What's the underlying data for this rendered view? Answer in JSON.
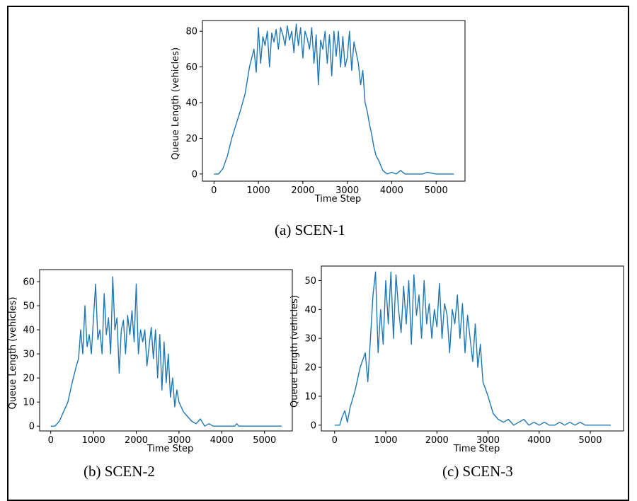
{
  "captions": [
    "(a) SCEN-1",
    "(b) SCEN-2",
    "(c) SCEN-3"
  ],
  "chart_data": [
    {
      "type": "line",
      "title": "",
      "xlabel": "Time Step",
      "ylabel": "Queue Length (vehicles)",
      "xlim": [
        -260,
        5650
      ],
      "ylim": [
        -4,
        86
      ],
      "xticks": [
        0,
        1000,
        2000,
        3000,
        4000,
        5000
      ],
      "yticks": [
        0,
        20,
        40,
        60,
        80
      ],
      "color": "#1f77b4",
      "x": [
        0,
        100,
        200,
        300,
        400,
        500,
        600,
        700,
        800,
        900,
        950,
        1000,
        1050,
        1100,
        1150,
        1200,
        1250,
        1300,
        1350,
        1400,
        1450,
        1500,
        1550,
        1600,
        1650,
        1700,
        1750,
        1800,
        1850,
        1900,
        1950,
        2000,
        2050,
        2100,
        2150,
        2200,
        2250,
        2300,
        2350,
        2400,
        2450,
        2500,
        2550,
        2600,
        2650,
        2700,
        2750,
        2800,
        2850,
        2900,
        2950,
        3000,
        3050,
        3100,
        3150,
        3200,
        3250,
        3300,
        3350,
        3400,
        3450,
        3500,
        3550,
        3600,
        3650,
        3700,
        3750,
        3800,
        3850,
        3900,
        4000,
        4100,
        4200,
        4300,
        4400,
        4500,
        4600,
        4700,
        4800,
        5000,
        5400
      ],
      "y": [
        0,
        0,
        3,
        10,
        20,
        28,
        36,
        45,
        60,
        70,
        57,
        82,
        62,
        77,
        72,
        80,
        60,
        79,
        74,
        81,
        70,
        82,
        78,
        72,
        83,
        75,
        80,
        68,
        84,
        72,
        82,
        65,
        80,
        76,
        70,
        82,
        62,
        78,
        50,
        75,
        70,
        80,
        62,
        78,
        55,
        80,
        66,
        80,
        60,
        77,
        60,
        65,
        80,
        58,
        74,
        68,
        62,
        50,
        58,
        40,
        35,
        28,
        22,
        15,
        10,
        8,
        5,
        2,
        1,
        0,
        1,
        0,
        2,
        0,
        0,
        0,
        0,
        0,
        1,
        0,
        0
      ]
    },
    {
      "type": "line",
      "title": "",
      "xlabel": "Time Step",
      "ylabel": "Queue Length (vehicles)",
      "xlim": [
        -260,
        5650
      ],
      "ylim": [
        -2,
        65
      ],
      "xticks": [
        0,
        1000,
        2000,
        3000,
        4000,
        5000
      ],
      "yticks": [
        0,
        10,
        20,
        30,
        40,
        50,
        60
      ],
      "color": "#1f77b4",
      "x": [
        0,
        100,
        200,
        300,
        400,
        500,
        600,
        650,
        700,
        750,
        800,
        850,
        900,
        950,
        1000,
        1050,
        1100,
        1150,
        1200,
        1250,
        1300,
        1350,
        1400,
        1450,
        1500,
        1550,
        1600,
        1650,
        1700,
        1750,
        1800,
        1850,
        1900,
        1950,
        2000,
        2050,
        2100,
        2150,
        2200,
        2250,
        2300,
        2350,
        2400,
        2450,
        2500,
        2550,
        2600,
        2650,
        2700,
        2750,
        2800,
        2850,
        2900,
        2950,
        3000,
        3100,
        3200,
        3300,
        3400,
        3500,
        3600,
        3700,
        3800,
        4000,
        4300,
        4350,
        4400,
        5400
      ],
      "y": [
        0,
        0,
        2,
        6,
        10,
        18,
        25,
        28,
        40,
        30,
        50,
        33,
        38,
        30,
        45,
        59,
        36,
        40,
        30,
        55,
        38,
        45,
        30,
        62,
        40,
        45,
        22,
        40,
        44,
        30,
        46,
        38,
        48,
        35,
        59,
        30,
        40,
        35,
        40,
        25,
        33,
        41,
        28,
        40,
        20,
        38,
        15,
        35,
        18,
        30,
        12,
        20,
        8,
        15,
        10,
        6,
        4,
        2,
        1,
        3,
        0,
        1,
        0,
        0,
        0,
        1,
        0,
        0
      ]
    },
    {
      "type": "line",
      "title": "",
      "xlabel": "Time Step",
      "ylabel": "Queue Length (vehicles)",
      "xlim": [
        -260,
        5650
      ],
      "ylim": [
        -2,
        55
      ],
      "xticks": [
        0,
        1000,
        2000,
        3000,
        4000,
        5000
      ],
      "yticks": [
        0,
        10,
        20,
        30,
        40,
        50
      ],
      "color": "#1f77b4",
      "x": [
        0,
        100,
        150,
        200,
        250,
        300,
        400,
        500,
        600,
        650,
        700,
        750,
        800,
        850,
        900,
        950,
        1000,
        1050,
        1100,
        1150,
        1200,
        1250,
        1300,
        1350,
        1400,
        1450,
        1500,
        1550,
        1600,
        1650,
        1700,
        1750,
        1800,
        1850,
        1900,
        1950,
        2000,
        2050,
        2100,
        2150,
        2200,
        2250,
        2300,
        2350,
        2400,
        2450,
        2500,
        2550,
        2600,
        2650,
        2700,
        2750,
        2800,
        2850,
        2900,
        3000,
        3100,
        3200,
        3300,
        3400,
        3500,
        3600,
        3700,
        3800,
        3900,
        4000,
        4100,
        4200,
        4300,
        4400,
        4500,
        4600,
        4700,
        4800,
        4900,
        5000,
        5400
      ],
      "y": [
        0,
        0,
        3,
        5,
        1,
        6,
        12,
        20,
        25,
        15,
        30,
        45,
        53,
        25,
        40,
        28,
        50,
        35,
        53,
        30,
        52,
        40,
        32,
        48,
        35,
        50,
        28,
        52,
        38,
        45,
        30,
        50,
        35,
        42,
        30,
        40,
        34,
        49,
        30,
        42,
        38,
        25,
        40,
        35,
        45,
        30,
        42,
        25,
        38,
        30,
        22,
        35,
        20,
        28,
        15,
        10,
        4,
        2,
        1,
        2,
        0,
        1,
        2,
        0,
        1,
        0,
        1,
        0,
        0,
        1,
        0,
        1,
        0,
        1,
        0,
        0,
        0
      ]
    }
  ]
}
